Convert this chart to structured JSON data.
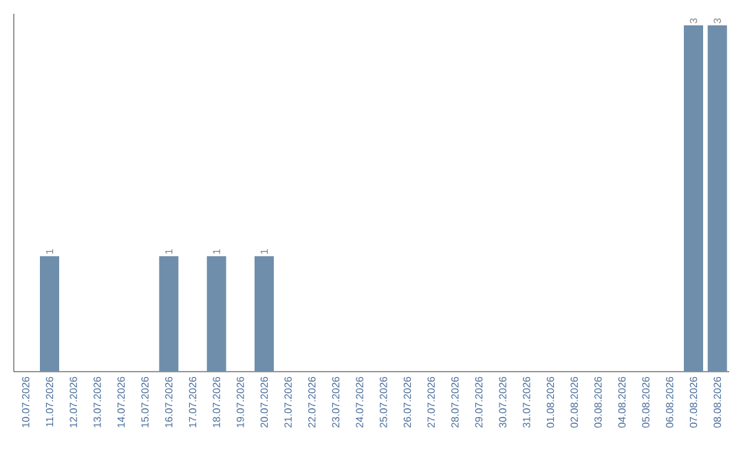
{
  "chart_data": {
    "type": "bar",
    "categories": [
      "10.07.2026",
      "11.07.2026",
      "12.07.2026",
      "13.07.2026",
      "14.07.2026",
      "15.07.2026",
      "16.07.2026",
      "17.07.2026",
      "18.07.2026",
      "19.07.2026",
      "20.07.2026",
      "21.07.2026",
      "22.07.2026",
      "23.07.2026",
      "24.07.2026",
      "25.07.2026",
      "26.07.2026",
      "27.07.2026",
      "28.07.2026",
      "29.07.2026",
      "30.07.2026",
      "31.07.2026",
      "01.08.2026",
      "02.08.2026",
      "03.08.2026",
      "04.08.2026",
      "05.08.2026",
      "06.08.2026",
      "07.08.2026",
      "08.08.2026"
    ],
    "values": [
      0,
      1,
      0,
      0,
      0,
      0,
      1,
      0,
      1,
      0,
      1,
      0,
      0,
      0,
      0,
      0,
      0,
      0,
      0,
      0,
      0,
      0,
      0,
      0,
      0,
      0,
      0,
      0,
      3,
      3
    ],
    "value_labels": [
      null,
      "1",
      null,
      null,
      null,
      null,
      "1",
      null,
      "1",
      null,
      "1",
      null,
      null,
      null,
      null,
      null,
      null,
      null,
      null,
      null,
      null,
      null,
      null,
      null,
      null,
      null,
      null,
      null,
      "3",
      "3"
    ],
    "color": "#6f8eab",
    "ylim": [
      0,
      3.1
    ],
    "tick_labels": "x",
    "grid": false
  }
}
